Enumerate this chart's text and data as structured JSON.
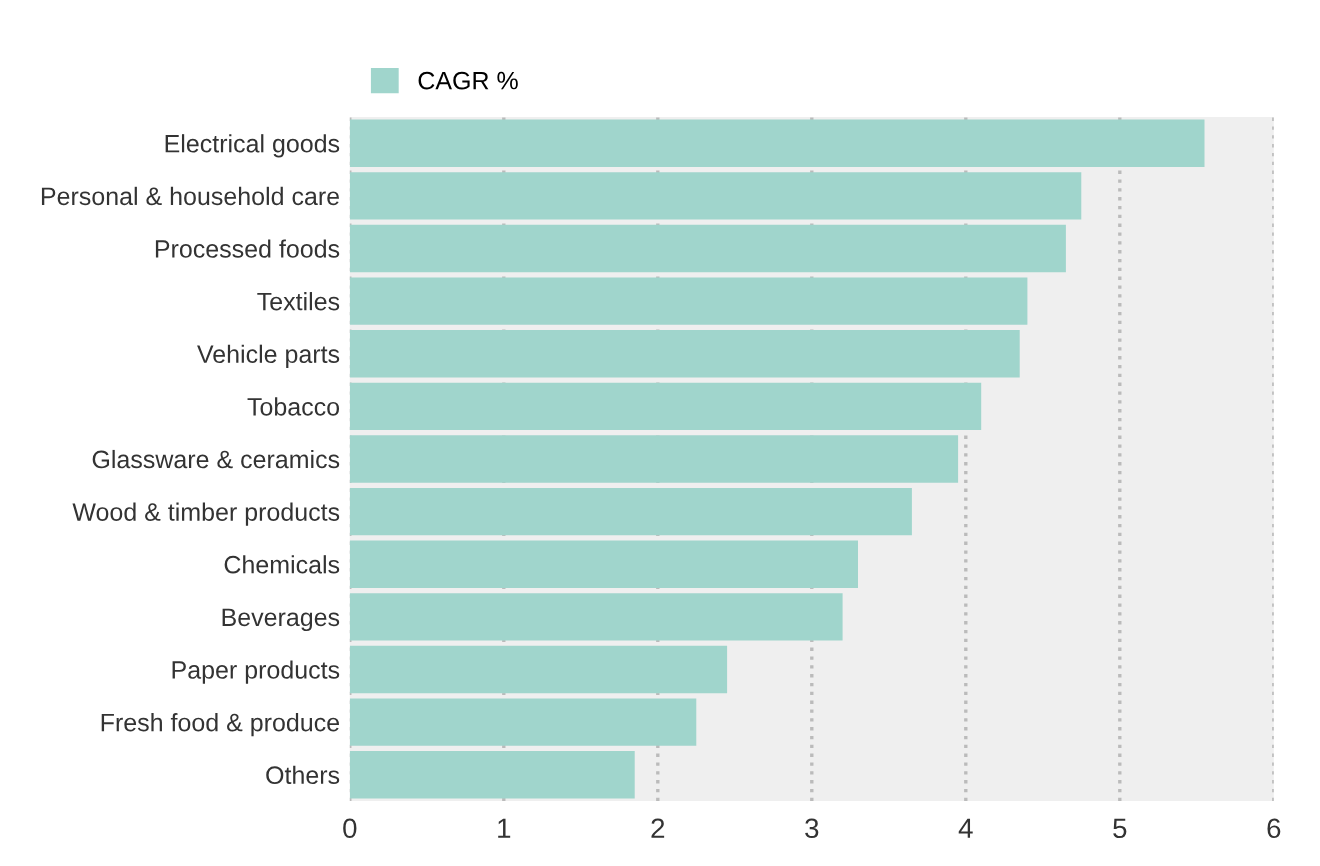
{
  "chart_data": {
    "type": "bar",
    "orientation": "horizontal",
    "categories": [
      "Electrical goods",
      "Personal & household care",
      "Processed foods",
      "Textiles",
      "Vehicle parts",
      "Tobacco",
      "Glassware & ceramics",
      "Wood & timber products",
      "Chemicals",
      "Beverages",
      "Paper products",
      "Fresh food & produce",
      "Others"
    ],
    "series": [
      {
        "name": "CAGR %",
        "color": "#a0d5cc",
        "values": [
          5.55,
          4.75,
          4.65,
          4.4,
          4.35,
          4.1,
          3.95,
          3.65,
          3.3,
          3.2,
          2.45,
          2.25,
          1.85
        ]
      }
    ],
    "xlim": [
      0,
      6
    ],
    "xticks": [
      0,
      1,
      2,
      3,
      4,
      5,
      6
    ],
    "grid": "x",
    "legend": "top left"
  }
}
